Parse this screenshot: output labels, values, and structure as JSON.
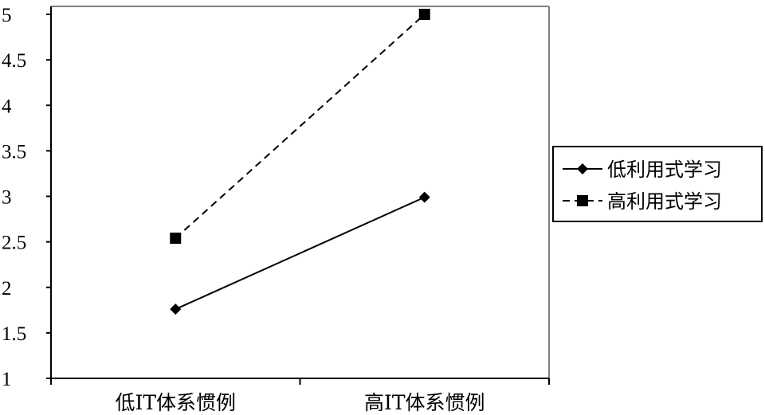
{
  "chart_data": {
    "type": "line",
    "categories": [
      "低IT体系惯例",
      "高IT体系惯例"
    ],
    "series": [
      {
        "name": "低利用式学习",
        "values": [
          1.76,
          2.99
        ],
        "line_style": "solid",
        "marker": "diamond",
        "color": "#000000"
      },
      {
        "name": "高利用式学习",
        "values": [
          2.54,
          5.0
        ],
        "line_style": "dashed",
        "marker": "square",
        "color": "#000000"
      }
    ],
    "title": "",
    "xlabel": "",
    "ylabel": "",
    "ylim": [
      1,
      5
    ],
    "yticks": [
      "1",
      "1.5",
      "2",
      "2.5",
      "3",
      "3.5",
      "4",
      "4.5",
      "5"
    ],
    "grid": false,
    "legend_position": "right"
  }
}
